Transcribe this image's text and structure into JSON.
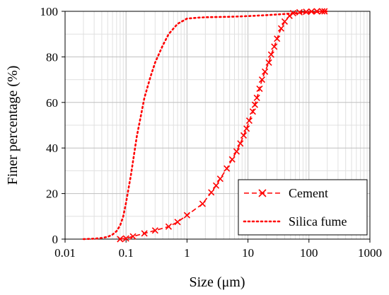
{
  "chart_data": {
    "type": "line",
    "title": "",
    "xlabel": "Size (μm)",
    "ylabel": "Finer percentage (%)",
    "xscale": "log",
    "xlim": [
      0.01,
      1000
    ],
    "ylim": [
      0,
      100
    ],
    "x_ticks": [
      "0.01",
      "0.1",
      "1",
      "10",
      "100",
      "1000"
    ],
    "y_ticks": [
      "0",
      "20",
      "40",
      "60",
      "80",
      "100"
    ],
    "grid": true,
    "legend_position": "bottom-right",
    "series": [
      {
        "name": "Cement",
        "color": "#ff0000",
        "line_style": "dashed",
        "marker": "x",
        "x": [
          0.08,
          0.1,
          0.13,
          0.2,
          0.3,
          0.5,
          0.7,
          1.0,
          1.8,
          2.5,
          3.0,
          3.5,
          4.5,
          5.5,
          6.5,
          7.5,
          8.5,
          9.5,
          10.5,
          12,
          13,
          14,
          15.5,
          17,
          19,
          22,
          24,
          27,
          30,
          35,
          40,
          48,
          55,
          70,
          90,
          110,
          135,
          165,
          180
        ],
        "y": [
          0,
          0.3,
          1.2,
          2.5,
          3.8,
          5.5,
          7.5,
          10.5,
          15.5,
          20.5,
          23.5,
          26.5,
          31,
          35,
          38.5,
          42,
          45.5,
          48.5,
          52,
          56,
          59,
          62,
          66,
          70,
          73.5,
          77.5,
          81,
          84.5,
          88,
          92.5,
          95.5,
          98,
          99.2,
          99.6,
          99.8,
          99.9,
          100,
          100,
          100
        ]
      },
      {
        "name": "Silica fume",
        "color": "#ff0000",
        "line_style": "dotted",
        "marker": "none",
        "x": [
          0.02,
          0.03,
          0.04,
          0.05,
          0.06,
          0.07,
          0.08,
          0.09,
          0.1,
          0.12,
          0.15,
          0.2,
          0.25,
          0.3,
          0.4,
          0.5,
          0.7,
          1.0,
          1.5,
          2,
          5,
          10,
          20,
          50,
          100,
          200
        ],
        "y": [
          0,
          0.2,
          0.5,
          1.0,
          2.0,
          3.5,
          6.0,
          10.0,
          16.0,
          28.0,
          45.0,
          62.0,
          71.0,
          77.5,
          85.0,
          90.0,
          94.5,
          96.8,
          97.2,
          97.4,
          97.6,
          97.9,
          98.3,
          99.0,
          99.5,
          100
        ]
      }
    ]
  }
}
